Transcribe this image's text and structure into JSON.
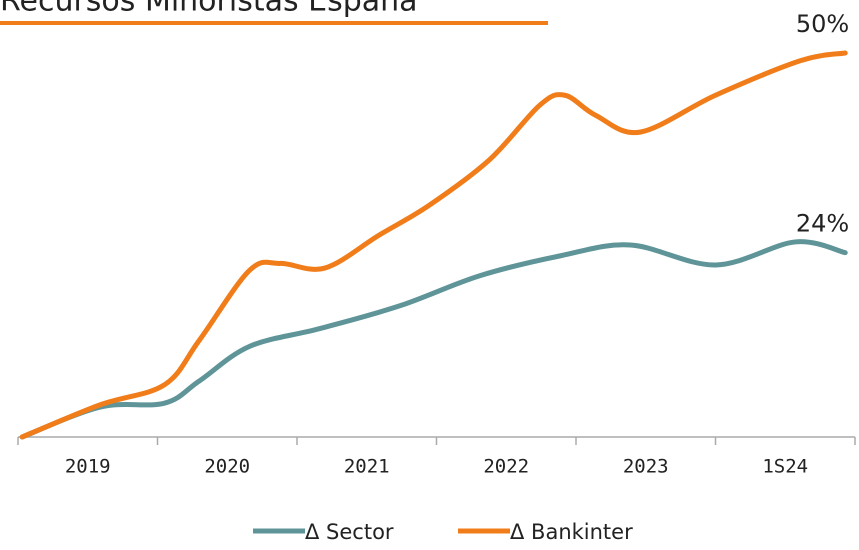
{
  "chart_data": {
    "type": "line",
    "title": "Recursos Minoristas España",
    "categories": [
      "2019",
      "2020",
      "2021",
      "2022",
      "2023",
      "1S24"
    ],
    "xlim": [
      0,
      6
    ],
    "ylim": [
      0,
      50
    ],
    "series": [
      {
        "name": "Δ Sector",
        "color": "#5f9598",
        "x": [
          0.03,
          0.59,
          1.05,
          1.3,
          1.66,
          2.16,
          2.74,
          3.31,
          3.89,
          4.39,
          5.0,
          5.57,
          5.93
        ],
        "values": [
          0,
          3.9,
          4.4,
          7.3,
          11.8,
          14.1,
          17.1,
          21.0,
          23.6,
          25.0,
          22.4,
          25.4,
          24
        ],
        "value_labels": [
          null,
          null,
          null,
          null,
          null,
          null,
          null,
          null,
          null,
          null,
          null,
          null,
          "24%"
        ]
      },
      {
        "name": "Δ Bankinter",
        "color": "#f07d1a",
        "x": [
          0.03,
          0.59,
          1.05,
          1.3,
          1.66,
          1.88,
          2.2,
          2.59,
          2.95,
          3.38,
          3.74,
          3.92,
          4.14,
          4.46,
          5.0,
          5.61,
          5.93
        ],
        "values": [
          0,
          4.2,
          6.8,
          12.6,
          21.7,
          22.6,
          22.0,
          26.3,
          30.2,
          36.1,
          43.2,
          44.5,
          41.9,
          39.7,
          44.5,
          49.0,
          50
        ],
        "value_labels": [
          null,
          null,
          null,
          null,
          null,
          null,
          null,
          null,
          null,
          null,
          null,
          null,
          null,
          null,
          null,
          null,
          "50%"
        ]
      }
    ]
  }
}
